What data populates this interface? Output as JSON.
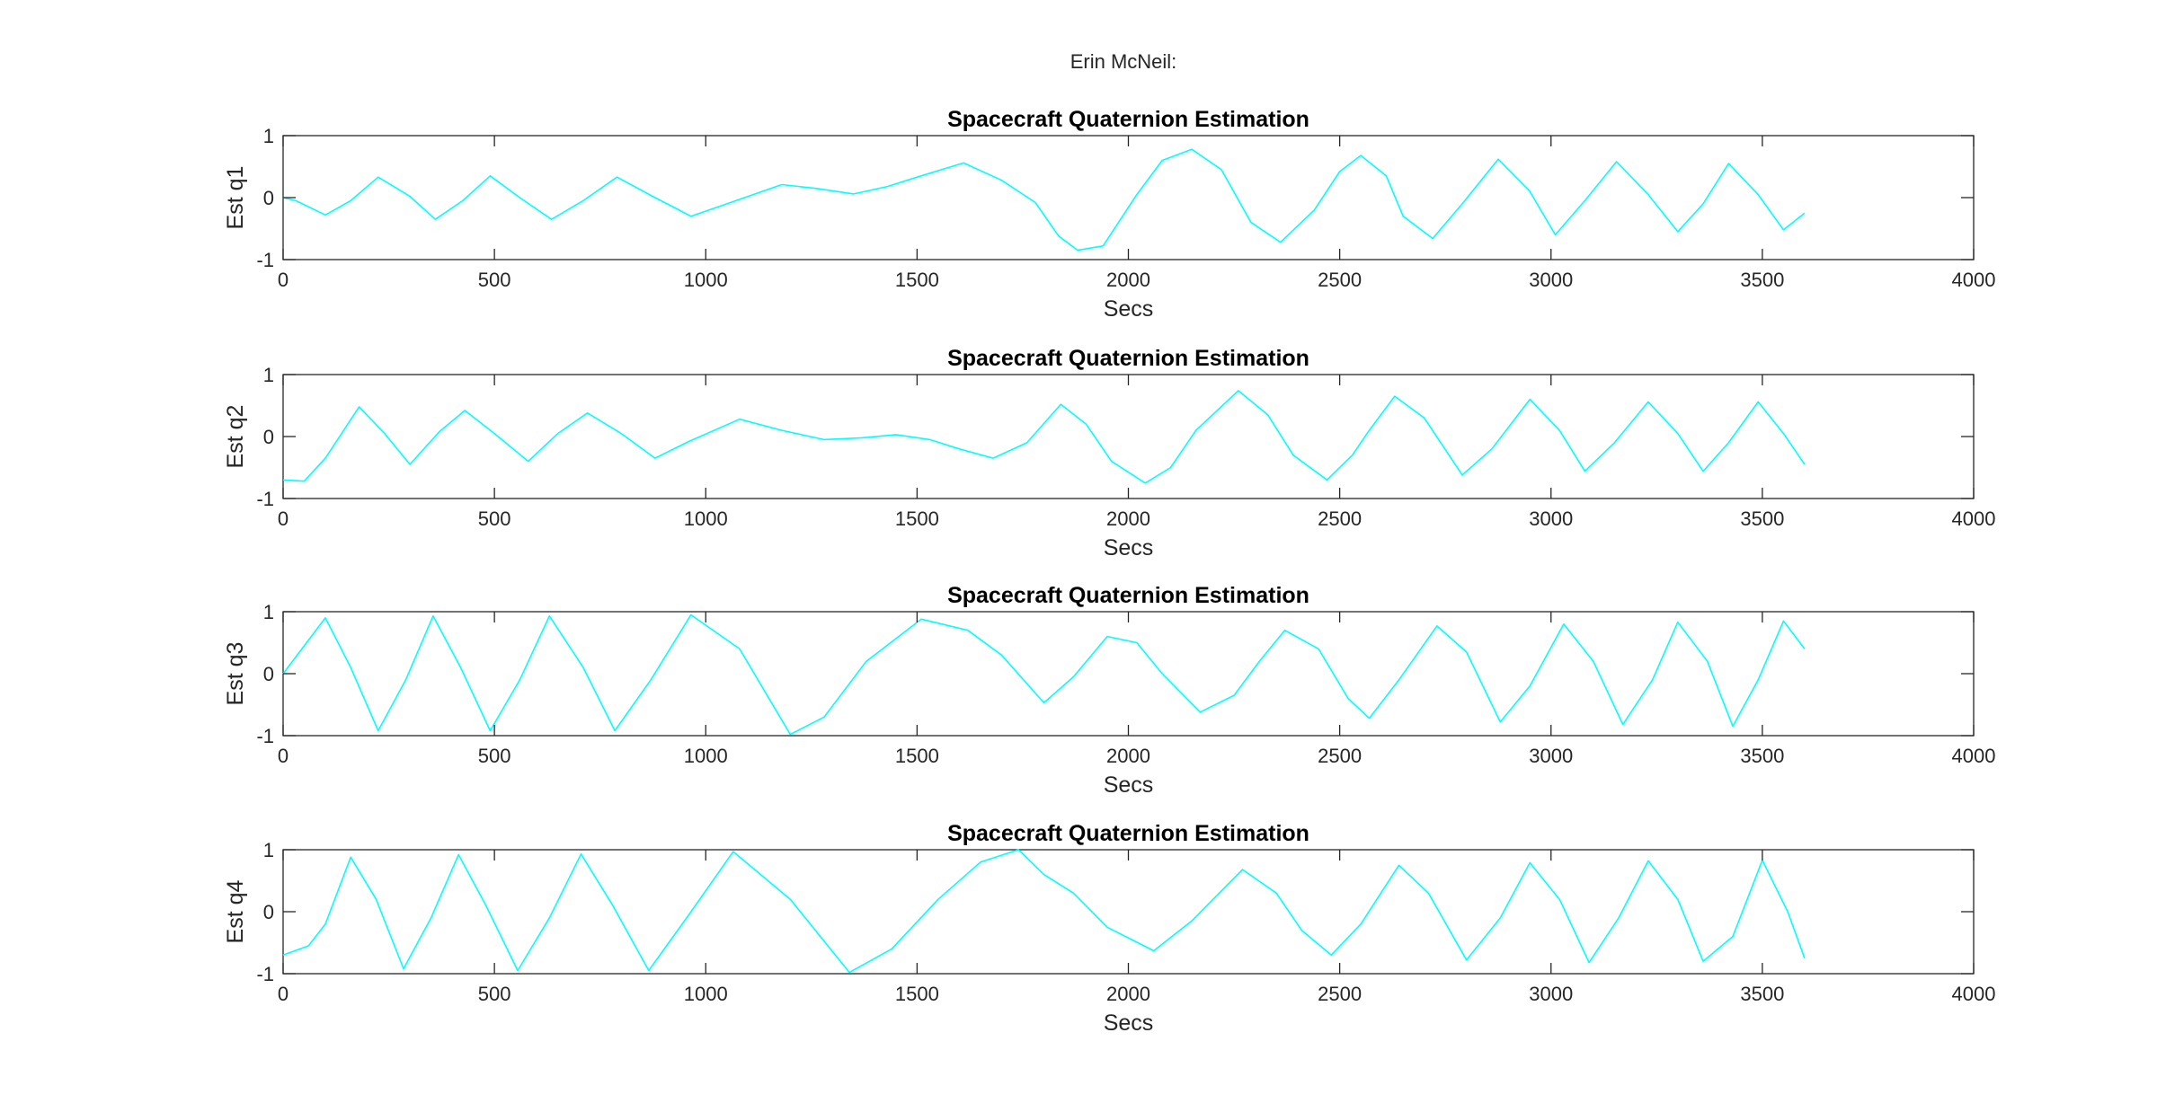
{
  "figure": {
    "suptitle": "Erin McNeil:"
  },
  "chart_data": [
    {
      "type": "line",
      "title": "Spacecraft Quaternion Estimation",
      "xlabel": "Secs",
      "ylabel": "Est q1",
      "xlim": [
        0,
        4000
      ],
      "ylim": [
        -1,
        1
      ],
      "xticks": [
        "0",
        "500",
        "1000",
        "1500",
        "2000",
        "2500",
        "3000",
        "3500",
        "4000"
      ],
      "yticks": [
        "-1",
        "0",
        "1"
      ],
      "grid": false,
      "line_color": "#00ffff",
      "x": [
        0,
        30,
        100,
        160,
        225,
        300,
        360,
        425,
        490,
        560,
        635,
        710,
        790,
        880,
        965,
        1050,
        1180,
        1260,
        1350,
        1430,
        1500,
        1610,
        1700,
        1780,
        1835,
        1880,
        1940,
        2020,
        2080,
        2150,
        2220,
        2290,
        2360,
        2440,
        2500,
        2550,
        2610,
        2650,
        2720,
        2790,
        2875,
        2950,
        3010,
        3080,
        3155,
        3230,
        3300,
        3360,
        3420,
        3490,
        3550,
        3600
      ],
      "y": [
        0,
        -0.05,
        -0.28,
        -0.05,
        0.33,
        0.02,
        -0.35,
        -0.05,
        0.35,
        0.0,
        -0.35,
        -0.05,
        0.33,
        0.0,
        -0.3,
        -0.1,
        0.21,
        0.15,
        0.06,
        0.18,
        0.33,
        0.56,
        0.28,
        -0.08,
        -0.62,
        -0.85,
        -0.78,
        0.05,
        0.6,
        0.78,
        0.45,
        -0.4,
        -0.72,
        -0.2,
        0.42,
        0.68,
        0.35,
        -0.3,
        -0.66,
        -0.1,
        0.62,
        0.1,
        -0.6,
        -0.05,
        0.58,
        0.05,
        -0.55,
        -0.1,
        0.55,
        0.05,
        -0.52,
        -0.25
      ]
    },
    {
      "type": "line",
      "title": "Spacecraft Quaternion Estimation",
      "xlabel": "Secs",
      "ylabel": "Est q2",
      "xlim": [
        0,
        4000
      ],
      "ylim": [
        -1,
        1
      ],
      "xticks": [
        "0",
        "500",
        "1000",
        "1500",
        "2000",
        "2500",
        "3000",
        "3500",
        "4000"
      ],
      "yticks": [
        "-1",
        "0",
        "1"
      ],
      "grid": false,
      "line_color": "#00ffff",
      "x": [
        0,
        50,
        100,
        180,
        240,
        300,
        370,
        430,
        500,
        580,
        650,
        720,
        800,
        880,
        960,
        1080,
        1180,
        1280,
        1370,
        1450,
        1530,
        1600,
        1680,
        1760,
        1840,
        1900,
        1960,
        2040,
        2100,
        2160,
        2260,
        2330,
        2390,
        2470,
        2530,
        2570,
        2630,
        2700,
        2790,
        2860,
        2950,
        3020,
        3080,
        3150,
        3230,
        3300,
        3360,
        3420,
        3490,
        3550,
        3600
      ],
      "y": [
        -0.7,
        -0.72,
        -0.35,
        0.48,
        0.05,
        -0.45,
        0.08,
        0.42,
        0.05,
        -0.4,
        0.05,
        0.38,
        0.05,
        -0.35,
        -0.08,
        0.28,
        0.1,
        -0.05,
        -0.02,
        0.03,
        -0.05,
        -0.2,
        -0.35,
        -0.1,
        0.52,
        0.2,
        -0.4,
        -0.75,
        -0.5,
        0.1,
        0.74,
        0.35,
        -0.3,
        -0.7,
        -0.3,
        0.1,
        0.65,
        0.3,
        -0.62,
        -0.2,
        0.6,
        0.1,
        -0.56,
        -0.1,
        0.56,
        0.05,
        -0.56,
        -0.1,
        0.56,
        0.05,
        -0.45
      ]
    },
    {
      "type": "line",
      "title": "Spacecraft Quaternion Estimation",
      "xlabel": "Secs",
      "ylabel": "Est q3",
      "xlim": [
        0,
        4000
      ],
      "ylim": [
        -1,
        1
      ],
      "xticks": [
        "0",
        "500",
        "1000",
        "1500",
        "2000",
        "2500",
        "3000",
        "3500",
        "4000"
      ],
      "yticks": [
        "-1",
        "0",
        "1"
      ],
      "grid": false,
      "line_color": "#00ffff",
      "x": [
        0,
        100,
        160,
        225,
        290,
        355,
        420,
        490,
        560,
        630,
        710,
        785,
        870,
        965,
        1080,
        1200,
        1280,
        1380,
        1510,
        1620,
        1700,
        1800,
        1870,
        1950,
        2020,
        2080,
        2170,
        2250,
        2310,
        2370,
        2450,
        2520,
        2570,
        2640,
        2730,
        2800,
        2880,
        2950,
        3030,
        3100,
        3170,
        3240,
        3300,
        3370,
        3430,
        3490,
        3550,
        3600
      ],
      "y": [
        0,
        0.9,
        0.1,
        -0.92,
        -0.1,
        0.93,
        0.1,
        -0.92,
        -0.1,
        0.93,
        0.1,
        -0.92,
        -0.1,
        0.95,
        0.4,
        -0.98,
        -0.7,
        0.2,
        0.88,
        0.7,
        0.3,
        -0.47,
        -0.05,
        0.6,
        0.5,
        0.0,
        -0.62,
        -0.35,
        0.2,
        0.7,
        0.4,
        -0.4,
        -0.72,
        -0.1,
        0.77,
        0.35,
        -0.78,
        -0.2,
        0.8,
        0.2,
        -0.82,
        -0.1,
        0.83,
        0.2,
        -0.85,
        -0.1,
        0.85,
        0.4
      ]
    },
    {
      "type": "line",
      "title": "Spacecraft Quaternion Estimation",
      "xlabel": "Secs",
      "ylabel": "Est q4",
      "xlim": [
        0,
        4000
      ],
      "ylim": [
        -1,
        1
      ],
      "xticks": [
        "0",
        "500",
        "1000",
        "1500",
        "2000",
        "2500",
        "3000",
        "3500",
        "4000"
      ],
      "yticks": [
        "-1",
        "0",
        "1"
      ],
      "grid": false,
      "line_color": "#00ffff",
      "x": [
        0,
        60,
        100,
        160,
        220,
        285,
        350,
        415,
        480,
        555,
        630,
        705,
        780,
        865,
        960,
        1065,
        1200,
        1340,
        1440,
        1550,
        1650,
        1740,
        1800,
        1870,
        1950,
        2060,
        2150,
        2270,
        2350,
        2410,
        2480,
        2550,
        2640,
        2710,
        2800,
        2880,
        2950,
        3020,
        3090,
        3160,
        3230,
        3300,
        3360,
        3430,
        3500,
        3560,
        3600
      ],
      "y": [
        -0.7,
        -0.55,
        -0.2,
        0.88,
        0.2,
        -0.92,
        -0.1,
        0.92,
        0.1,
        -0.95,
        -0.1,
        0.93,
        0.1,
        -0.95,
        -0.05,
        0.97,
        0.2,
        -0.98,
        -0.6,
        0.2,
        0.8,
        1.0,
        0.6,
        0.3,
        -0.25,
        -0.63,
        -0.15,
        0.68,
        0.3,
        -0.3,
        -0.7,
        -0.2,
        0.75,
        0.3,
        -0.78,
        -0.1,
        0.79,
        0.2,
        -0.82,
        -0.1,
        0.82,
        0.2,
        -0.8,
        -0.4,
        0.83,
        0.0,
        -0.75
      ]
    }
  ]
}
